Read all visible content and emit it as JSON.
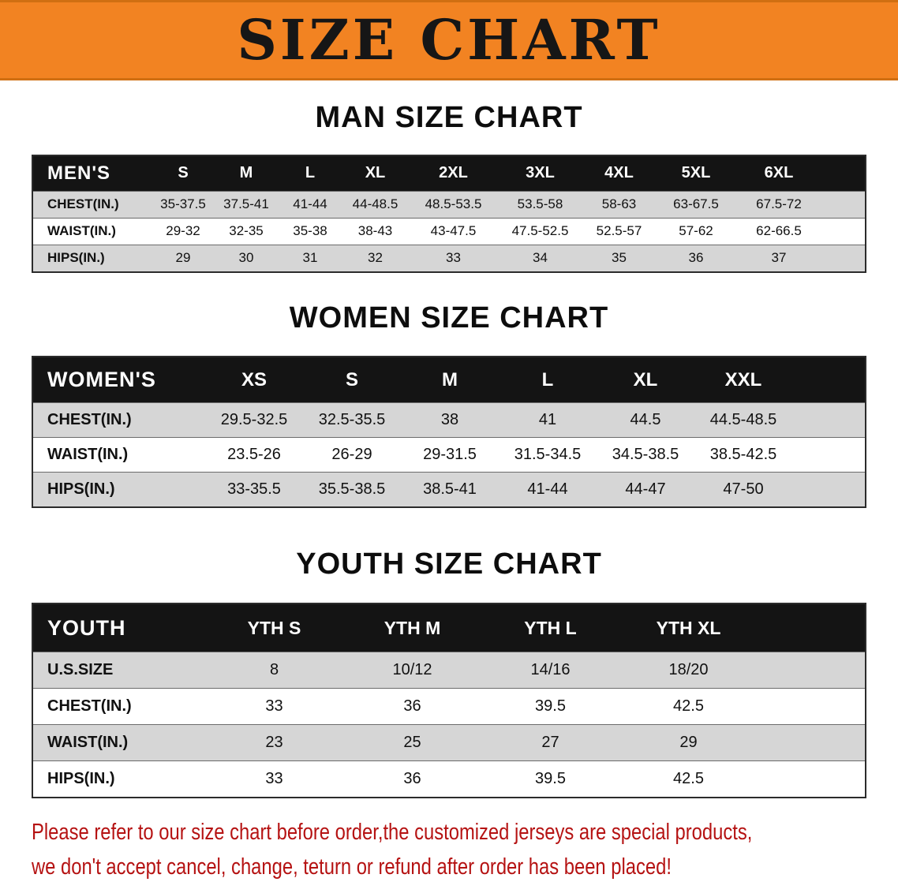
{
  "banner": {
    "title": "SIZE CHART"
  },
  "sections": {
    "men": {
      "heading": "MAN SIZE CHART",
      "table": {
        "header": [
          "MEN'S",
          "S",
          "M",
          "L",
          "XL",
          "2XL",
          "3XL",
          "4XL",
          "5XL",
          "6XL"
        ],
        "rows": [
          [
            "CHEST(IN.)",
            "35-37.5",
            "37.5-41",
            "41-44",
            "44-48.5",
            "48.5-53.5",
            "53.5-58",
            "58-63",
            "63-67.5",
            "67.5-72"
          ],
          [
            "WAIST(IN.)",
            "29-32",
            "32-35",
            "35-38",
            "38-43",
            "43-47.5",
            "47.5-52.5",
            "52.5-57",
            "57-62",
            "62-66.5"
          ],
          [
            "HIPS(IN.)",
            "29",
            "30",
            "31",
            "32",
            "33",
            "34",
            "35",
            "36",
            "37"
          ]
        ]
      }
    },
    "women": {
      "heading": "WOMEN SIZE CHART",
      "table": {
        "header": [
          "WOMEN'S",
          "XS",
          "S",
          "M",
          "L",
          "XL",
          "XXL"
        ],
        "rows": [
          [
            "CHEST(IN.)",
            "29.5-32.5",
            "32.5-35.5",
            "38",
            "41",
            "44.5",
            "44.5-48.5"
          ],
          [
            "WAIST(IN.)",
            "23.5-26",
            "26-29",
            "29-31.5",
            "31.5-34.5",
            "34.5-38.5",
            "38.5-42.5"
          ],
          [
            "HIPS(IN.)",
            "33-35.5",
            "35.5-38.5",
            "38.5-41",
            "41-44",
            "44-47",
            "47-50"
          ]
        ]
      }
    },
    "youth": {
      "heading": "YOUTH SIZE CHART",
      "table": {
        "header": [
          "YOUTH",
          "YTH S",
          "YTH M",
          "YTH L",
          "YTH XL"
        ],
        "rows": [
          [
            "U.S.SIZE",
            "8",
            "10/12",
            "14/16",
            "18/20"
          ],
          [
            "CHEST(IN.)",
            "33",
            "36",
            "39.5",
            "42.5"
          ],
          [
            "WAIST(IN.)",
            "23",
            "25",
            "27",
            "29"
          ],
          [
            "HIPS(IN.)",
            "33",
            "36",
            "39.5",
            "42.5"
          ]
        ]
      }
    }
  },
  "disclaimer": {
    "line1": "Please refer to our size chart before order,the customized jerseys are special products,",
    "line2": "we don't accept cancel, change, teturn or refund after order has been placed!"
  },
  "colors": {
    "banner_bg": "#f28322",
    "table_header_bg": "#141414",
    "row_shade": "#d6d6d6",
    "disclaimer_text": "#b51212"
  }
}
